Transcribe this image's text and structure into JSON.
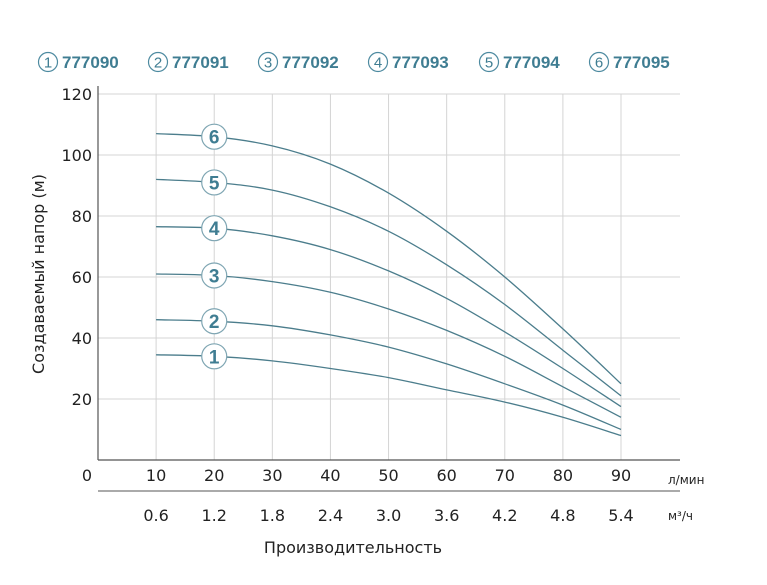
{
  "chart_data": {
    "type": "line",
    "legend": [
      {
        "num": "1",
        "model": "777090"
      },
      {
        "num": "2",
        "model": "777091"
      },
      {
        "num": "3",
        "model": "777092"
      },
      {
        "num": "4",
        "model": "777093"
      },
      {
        "num": "5",
        "model": "777094"
      },
      {
        "num": "6",
        "model": "777095"
      }
    ],
    "ylabel": "Создаваемый напор (м)",
    "xlabel": "Производительность",
    "x_unit": "л/мин",
    "x2_unit": "м³/ч",
    "ylim": [
      0,
      120
    ],
    "xlim": [
      0,
      90
    ],
    "y_ticks": [
      "20",
      "40",
      "60",
      "80",
      "100",
      "120"
    ],
    "x_ticks": [
      "0",
      "10",
      "20",
      "30",
      "40",
      "50",
      "60",
      "70",
      "80",
      "90"
    ],
    "x2_ticks": [
      "0.6",
      "1.2",
      "1.8",
      "2.4",
      "3.0",
      "3.6",
      "4.2",
      "4.8",
      "5.4"
    ],
    "grid": true,
    "series": [
      {
        "name": "1",
        "x": [
          10,
          20,
          30,
          40,
          50,
          60,
          70,
          80,
          90
        ],
        "y": [
          34.5,
          34,
          32.5,
          30,
          27,
          23,
          19,
          14,
          8
        ]
      },
      {
        "name": "2",
        "x": [
          10,
          20,
          30,
          40,
          50,
          60,
          70,
          80,
          90
        ],
        "y": [
          46,
          45.5,
          44,
          41,
          37,
          31.5,
          25,
          18,
          10
        ]
      },
      {
        "name": "3",
        "x": [
          10,
          20,
          30,
          40,
          50,
          60,
          70,
          80,
          90
        ],
        "y": [
          61,
          60.5,
          58.5,
          55,
          49.5,
          42.5,
          34,
          24,
          14
        ]
      },
      {
        "name": "4",
        "x": [
          10,
          20,
          30,
          40,
          50,
          60,
          70,
          80,
          90
        ],
        "y": [
          76.5,
          76,
          73.5,
          69,
          62,
          53,
          42,
          30,
          17.5
        ]
      },
      {
        "name": "5",
        "x": [
          10,
          20,
          30,
          40,
          50,
          60,
          70,
          80,
          90
        ],
        "y": [
          92,
          91,
          88.5,
          83,
          75,
          64,
          51,
          36,
          21
        ]
      },
      {
        "name": "6",
        "x": [
          10,
          20,
          30,
          40,
          50,
          60,
          70,
          80,
          90
        ],
        "y": [
          107,
          106,
          103,
          97,
          87.5,
          75,
          60,
          43,
          25
        ]
      }
    ],
    "curve_labels_x": 20
  }
}
